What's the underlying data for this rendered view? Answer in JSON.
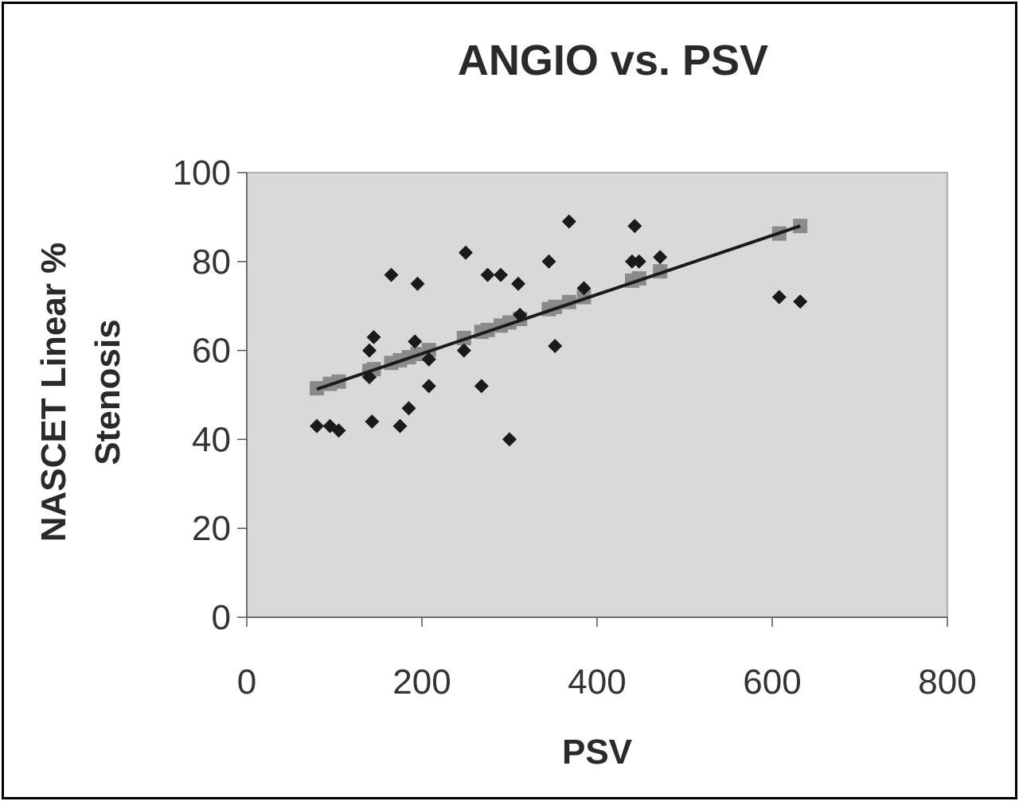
{
  "chart_data": {
    "type": "scatter",
    "title": "ANGIO vs. PSV",
    "xlabel": "PSV",
    "ylabel_lines": [
      "NASCET Linear %",
      "Stenosis"
    ],
    "xlim": [
      0,
      800
    ],
    "ylim": [
      0,
      100
    ],
    "x_ticks": [
      0,
      200,
      400,
      600,
      800
    ],
    "y_ticks": [
      0,
      20,
      40,
      60,
      80,
      100
    ],
    "grid": false,
    "legend": "none",
    "colors": {
      "points": "#1a1a1a",
      "fitted": "#8a8a8a",
      "line": "#1a1a1a",
      "plot_bg": "#d9d9d9"
    },
    "series": [
      {
        "kind": "observed",
        "marker": "diamond",
        "points": [
          [
            80,
            43
          ],
          [
            95,
            43
          ],
          [
            105,
            42
          ],
          [
            140,
            60
          ],
          [
            140,
            54
          ],
          [
            145,
            63
          ],
          [
            143,
            44
          ],
          [
            165,
            77
          ],
          [
            175,
            43
          ],
          [
            185,
            47
          ],
          [
            192,
            62
          ],
          [
            195,
            75
          ],
          [
            208,
            58
          ],
          [
            208,
            52
          ],
          [
            248,
            60
          ],
          [
            250,
            82
          ],
          [
            268,
            52
          ],
          [
            275,
            77
          ],
          [
            290,
            77
          ],
          [
            300,
            40
          ],
          [
            310,
            75
          ],
          [
            312,
            68
          ],
          [
            345,
            80
          ],
          [
            352,
            61
          ],
          [
            368,
            89
          ],
          [
            385,
            74
          ],
          [
            440,
            80
          ],
          [
            443,
            88
          ],
          [
            448,
            80
          ],
          [
            472,
            81
          ],
          [
            608,
            72
          ],
          [
            632,
            71
          ]
        ]
      },
      {
        "kind": "fitted",
        "marker": "square",
        "points": [
          [
            80,
            51.5
          ],
          [
            95,
            52.5
          ],
          [
            105,
            53
          ],
          [
            140,
            55.4
          ],
          [
            145,
            55.8
          ],
          [
            165,
            57.2
          ],
          [
            175,
            57.8
          ],
          [
            185,
            58.5
          ],
          [
            195,
            59.2
          ],
          [
            208,
            60.1
          ],
          [
            248,
            62.8
          ],
          [
            268,
            64.2
          ],
          [
            275,
            64.6
          ],
          [
            290,
            65.6
          ],
          [
            300,
            66.3
          ],
          [
            312,
            67.1
          ],
          [
            345,
            69.3
          ],
          [
            352,
            69.8
          ],
          [
            368,
            70.9
          ],
          [
            385,
            72
          ],
          [
            440,
            75.7
          ],
          [
            448,
            76.2
          ],
          [
            472,
            77.8
          ],
          [
            608,
            86.3
          ],
          [
            632,
            88
          ]
        ]
      },
      {
        "kind": "trendline",
        "points": [
          [
            80,
            51.3
          ],
          [
            632,
            88
          ]
        ]
      }
    ]
  }
}
